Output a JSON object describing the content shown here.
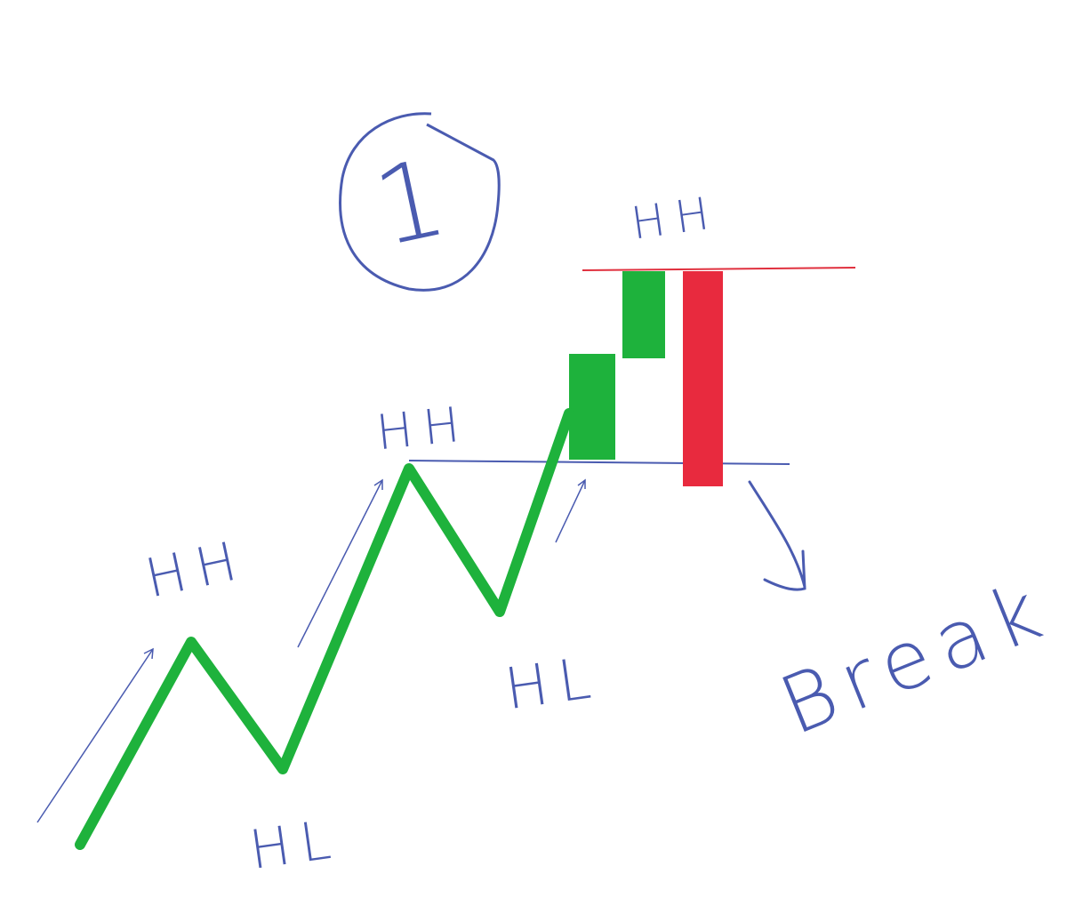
{
  "marker": {
    "label": "1"
  },
  "swing_labels": [
    "HH",
    "HL",
    "HH",
    "HL",
    "HH"
  ],
  "annotation": "Break"
}
